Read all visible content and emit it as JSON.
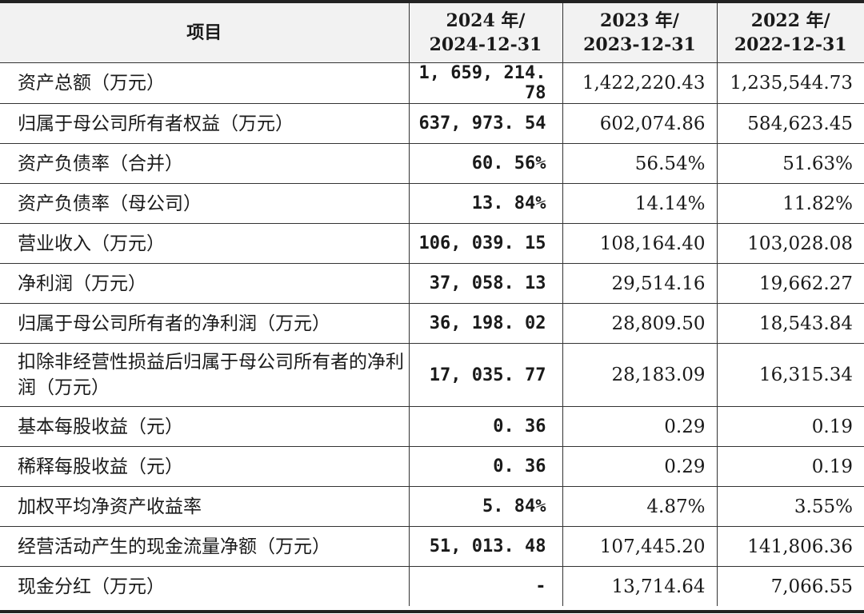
{
  "table": {
    "headers": [
      {
        "line1": "项目",
        "line2": ""
      },
      {
        "line1": "2024 年/",
        "line2": "2024-12-31"
      },
      {
        "line1": "2023 年/",
        "line2": "2023-12-31"
      },
      {
        "line1": "2022 年/",
        "line2": "2022-12-31"
      }
    ],
    "rows": [
      {
        "label": "资产总额（万元）",
        "v2024": "1, 659, 214. 78",
        "v2023": "1,422,220.43",
        "v2022": "1,235,544.73"
      },
      {
        "label": "归属于母公司所有者权益（万元）",
        "v2024": "637, 973. 54",
        "v2023": "602,074.86",
        "v2022": "584,623.45"
      },
      {
        "label": "资产负债率（合并）",
        "v2024": "60. 56%",
        "v2023": "56.54%",
        "v2022": "51.63%"
      },
      {
        "label": "资产负债率（母公司）",
        "v2024": "13. 84%",
        "v2023": "14.14%",
        "v2022": "11.82%"
      },
      {
        "label": "营业收入（万元）",
        "v2024": "106, 039. 15",
        "v2023": "108,164.40",
        "v2022": "103,028.08"
      },
      {
        "label": "净利润（万元）",
        "v2024": "37, 058. 13",
        "v2023": "29,514.16",
        "v2022": "19,662.27"
      },
      {
        "label": "归属于母公司所有者的净利润（万元）",
        "v2024": "36, 198. 02",
        "v2023": "28,809.50",
        "v2022": "18,543.84"
      },
      {
        "label": "扣除非经营性损益后归属于母公司所有者的净利润（万元）",
        "v2024": "17, 035. 77",
        "v2023": "28,183.09",
        "v2022": "16,315.34"
      },
      {
        "label": "基本每股收益（元）",
        "v2024": "0. 36",
        "v2023": "0.29",
        "v2022": "0.19"
      },
      {
        "label": "稀释每股收益（元）",
        "v2024": "0. 36",
        "v2023": "0.29",
        "v2022": "0.19"
      },
      {
        "label": "加权平均净资产收益率",
        "v2024": "5. 84%",
        "v2023": "4.87%",
        "v2022": "3.55%"
      },
      {
        "label": "经营活动产生的现金流量净额（万元）",
        "v2024": "51, 013. 48",
        "v2023": "107,445.20",
        "v2022": "141,806.36"
      },
      {
        "label": "现金分红（万元）",
        "v2024": "-",
        "v2023": "13,714.64",
        "v2022": "7,066.55"
      }
    ]
  }
}
